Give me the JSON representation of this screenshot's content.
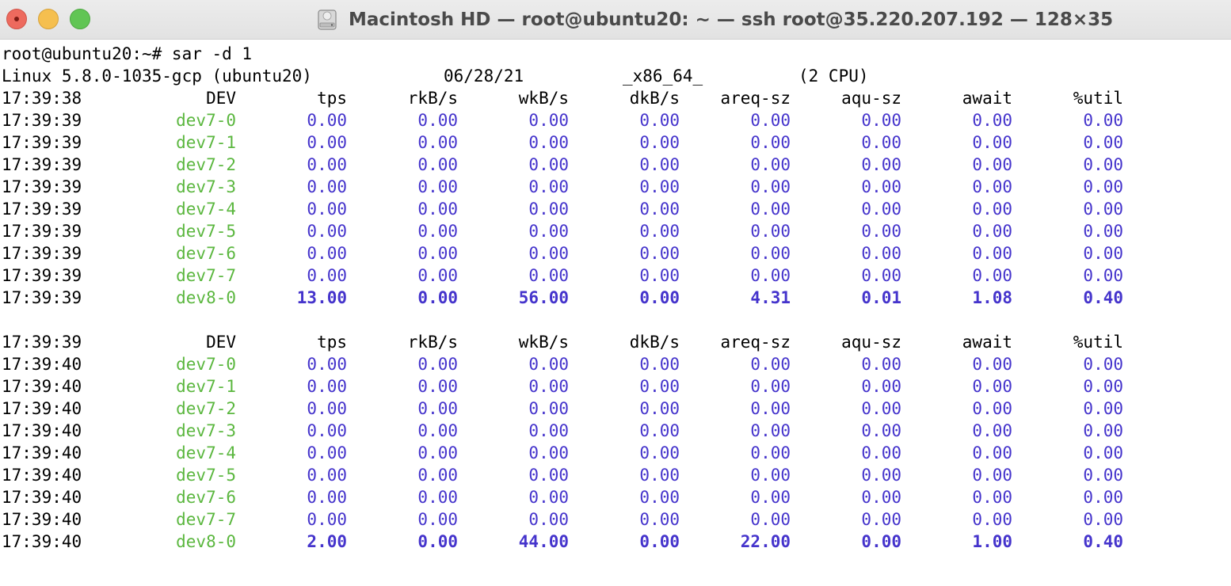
{
  "window": {
    "title": "Macintosh HD — root@ubuntu20: ~ — ssh root@35.220.207.192 — 128×35",
    "icon": "hard-drive-icon"
  },
  "colors": {
    "device": "#5bb73f",
    "value": "#4534cc",
    "text": "#000000"
  },
  "terminal": {
    "prompt": "root@ubuntu20:~# sar -d 1",
    "sysinfo": {
      "kernel": "Linux 5.8.0-1035-gcp (ubuntu20)",
      "date": "06/28/21",
      "arch": "_x86_64_",
      "cpus": "(2 CPU)"
    },
    "blocks": [
      {
        "header": {
          "time": "17:39:38",
          "cols": [
            "DEV",
            "tps",
            "rkB/s",
            "wkB/s",
            "dkB/s",
            "areq-sz",
            "aqu-sz",
            "await",
            "%util"
          ]
        },
        "rows": [
          {
            "time": "17:39:39",
            "dev": "dev7-0",
            "vals": [
              "0.00",
              "0.00",
              "0.00",
              "0.00",
              "0.00",
              "0.00",
              "0.00",
              "0.00"
            ],
            "bold": false
          },
          {
            "time": "17:39:39",
            "dev": "dev7-1",
            "vals": [
              "0.00",
              "0.00",
              "0.00",
              "0.00",
              "0.00",
              "0.00",
              "0.00",
              "0.00"
            ],
            "bold": false
          },
          {
            "time": "17:39:39",
            "dev": "dev7-2",
            "vals": [
              "0.00",
              "0.00",
              "0.00",
              "0.00",
              "0.00",
              "0.00",
              "0.00",
              "0.00"
            ],
            "bold": false
          },
          {
            "time": "17:39:39",
            "dev": "dev7-3",
            "vals": [
              "0.00",
              "0.00",
              "0.00",
              "0.00",
              "0.00",
              "0.00",
              "0.00",
              "0.00"
            ],
            "bold": false
          },
          {
            "time": "17:39:39",
            "dev": "dev7-4",
            "vals": [
              "0.00",
              "0.00",
              "0.00",
              "0.00",
              "0.00",
              "0.00",
              "0.00",
              "0.00"
            ],
            "bold": false
          },
          {
            "time": "17:39:39",
            "dev": "dev7-5",
            "vals": [
              "0.00",
              "0.00",
              "0.00",
              "0.00",
              "0.00",
              "0.00",
              "0.00",
              "0.00"
            ],
            "bold": false
          },
          {
            "time": "17:39:39",
            "dev": "dev7-6",
            "vals": [
              "0.00",
              "0.00",
              "0.00",
              "0.00",
              "0.00",
              "0.00",
              "0.00",
              "0.00"
            ],
            "bold": false
          },
          {
            "time": "17:39:39",
            "dev": "dev7-7",
            "vals": [
              "0.00",
              "0.00",
              "0.00",
              "0.00",
              "0.00",
              "0.00",
              "0.00",
              "0.00"
            ],
            "bold": false
          },
          {
            "time": "17:39:39",
            "dev": "dev8-0",
            "vals": [
              "13.00",
              "0.00",
              "56.00",
              "0.00",
              "4.31",
              "0.01",
              "1.08",
              "0.40"
            ],
            "bold": true
          }
        ]
      },
      {
        "header": {
          "time": "17:39:39",
          "cols": [
            "DEV",
            "tps",
            "rkB/s",
            "wkB/s",
            "dkB/s",
            "areq-sz",
            "aqu-sz",
            "await",
            "%util"
          ]
        },
        "rows": [
          {
            "time": "17:39:40",
            "dev": "dev7-0",
            "vals": [
              "0.00",
              "0.00",
              "0.00",
              "0.00",
              "0.00",
              "0.00",
              "0.00",
              "0.00"
            ],
            "bold": false
          },
          {
            "time": "17:39:40",
            "dev": "dev7-1",
            "vals": [
              "0.00",
              "0.00",
              "0.00",
              "0.00",
              "0.00",
              "0.00",
              "0.00",
              "0.00"
            ],
            "bold": false
          },
          {
            "time": "17:39:40",
            "dev": "dev7-2",
            "vals": [
              "0.00",
              "0.00",
              "0.00",
              "0.00",
              "0.00",
              "0.00",
              "0.00",
              "0.00"
            ],
            "bold": false
          },
          {
            "time": "17:39:40",
            "dev": "dev7-3",
            "vals": [
              "0.00",
              "0.00",
              "0.00",
              "0.00",
              "0.00",
              "0.00",
              "0.00",
              "0.00"
            ],
            "bold": false
          },
          {
            "time": "17:39:40",
            "dev": "dev7-4",
            "vals": [
              "0.00",
              "0.00",
              "0.00",
              "0.00",
              "0.00",
              "0.00",
              "0.00",
              "0.00"
            ],
            "bold": false
          },
          {
            "time": "17:39:40",
            "dev": "dev7-5",
            "vals": [
              "0.00",
              "0.00",
              "0.00",
              "0.00",
              "0.00",
              "0.00",
              "0.00",
              "0.00"
            ],
            "bold": false
          },
          {
            "time": "17:39:40",
            "dev": "dev7-6",
            "vals": [
              "0.00",
              "0.00",
              "0.00",
              "0.00",
              "0.00",
              "0.00",
              "0.00",
              "0.00"
            ],
            "bold": false
          },
          {
            "time": "17:39:40",
            "dev": "dev7-7",
            "vals": [
              "0.00",
              "0.00",
              "0.00",
              "0.00",
              "0.00",
              "0.00",
              "0.00",
              "0.00"
            ],
            "bold": false
          },
          {
            "time": "17:39:40",
            "dev": "dev8-0",
            "vals": [
              "2.00",
              "0.00",
              "44.00",
              "0.00",
              "22.00",
              "0.00",
              "1.00",
              "0.40"
            ],
            "bold": true
          }
        ]
      }
    ]
  }
}
